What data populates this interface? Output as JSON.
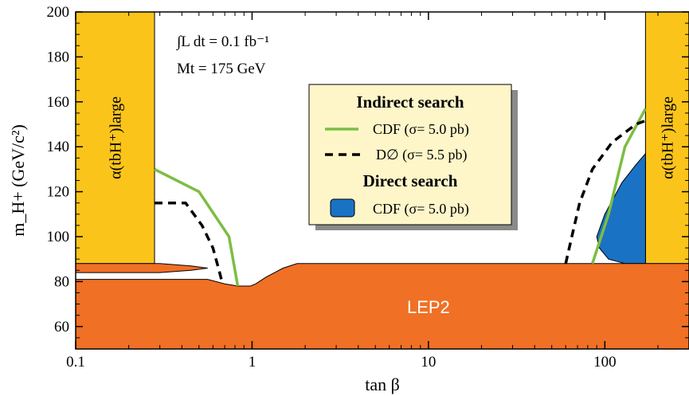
{
  "chart_data": {
    "type": "area",
    "title": "",
    "xlabel": "tan β",
    "ylabel": "m_H+ (GeV/c²)",
    "xscale": "log",
    "xlim": [
      0.1,
      300
    ],
    "ylim": [
      50,
      200
    ],
    "x_ticks": [
      0.1,
      1,
      10,
      100
    ],
    "x_tick_labels": [
      "0.1",
      "1",
      "10",
      "100"
    ],
    "y_ticks": [
      60,
      80,
      100,
      120,
      140,
      160,
      180,
      200
    ],
    "y_tick_labels": [
      "60",
      "80",
      "100",
      "120",
      "140",
      "160",
      "180",
      "200"
    ],
    "grid": false,
    "legend_position": "center",
    "annotations": {
      "luminosity": "∫L dt = 0.1 fb⁻¹",
      "top_mass": "Mt = 175 GeV"
    },
    "colors": {
      "lep2": "#f07025",
      "alpha_band": "#fbc41a",
      "cdf_indirect": "#7dbd42",
      "d0_indirect": "#000000",
      "cdf_direct": "#1a72c4"
    },
    "regions": {
      "lep2": {
        "label": "LEP2",
        "boundary": [
          [
            0.1,
            81
          ],
          [
            0.56,
            81
          ],
          [
            0.7,
            79
          ],
          [
            0.83,
            78
          ],
          [
            0.98,
            78
          ],
          [
            1.05,
            79
          ],
          [
            1.2,
            82
          ],
          [
            1.5,
            86
          ],
          [
            1.8,
            88
          ],
          [
            300,
            88
          ]
        ],
        "spike": [
          [
            0.1,
            84
          ],
          [
            0.3,
            84
          ],
          [
            0.45,
            85
          ],
          [
            0.56,
            86
          ],
          [
            0.45,
            87
          ],
          [
            0.3,
            88
          ],
          [
            0.1,
            88
          ]
        ]
      },
      "alpha_left": {
        "label": "α(tbH⁺)large",
        "x_range": [
          0.1,
          0.28
        ],
        "y_range": [
          88,
          200
        ]
      },
      "alpha_right": {
        "label": "α(tbH⁺)large",
        "x_range": [
          170,
          300
        ],
        "y_range": [
          88,
          200
        ]
      },
      "cdf_direct": {
        "boundary": [
          [
            170,
            88
          ],
          [
            170,
            137
          ],
          [
            150,
            132
          ],
          [
            125,
            124
          ],
          [
            100,
            110
          ],
          [
            90,
            100
          ],
          [
            93,
            95
          ],
          [
            105,
            90
          ],
          [
            130,
            88
          ]
        ]
      }
    },
    "legend": {
      "indirect_title": "Indirect search",
      "direct_title": "Direct search",
      "entries": [
        {
          "label": "CDF (σ= 5.0 pb)",
          "style": "line-green"
        },
        {
          "label": "D∅ (σ= 5.5 pb)",
          "style": "line-dashed-black"
        },
        {
          "label": "CDF (σ= 5.0 pb)",
          "style": "filled-blue"
        }
      ]
    },
    "series": [
      {
        "name": "CDF (σ= 5.0 pb)",
        "curves": [
          {
            "x": [
              0.28,
              0.5,
              0.74,
              0.83
            ],
            "y": [
              130,
              120,
              100,
              78
            ]
          },
          {
            "x": [
              85,
              105,
              130,
              170
            ],
            "y": [
              88,
              110,
              140,
              157
            ]
          }
        ]
      },
      {
        "name": "D∅ (σ= 5.5 pb)",
        "curves": [
          {
            "x": [
              0.28,
              0.42,
              0.52,
              0.6,
              0.65,
              0.67
            ],
            "y": [
              115,
              115,
              105,
              95,
              85,
              81
            ]
          },
          {
            "x": [
              60,
              65,
              72,
              85,
              110,
              150,
              175
            ],
            "y": [
              88,
              100,
              115,
              130,
              142,
              150,
              152
            ]
          }
        ]
      },
      {
        "name": "CDF (σ= 5.0 pb)",
        "fill": "cdf_direct"
      }
    ]
  }
}
